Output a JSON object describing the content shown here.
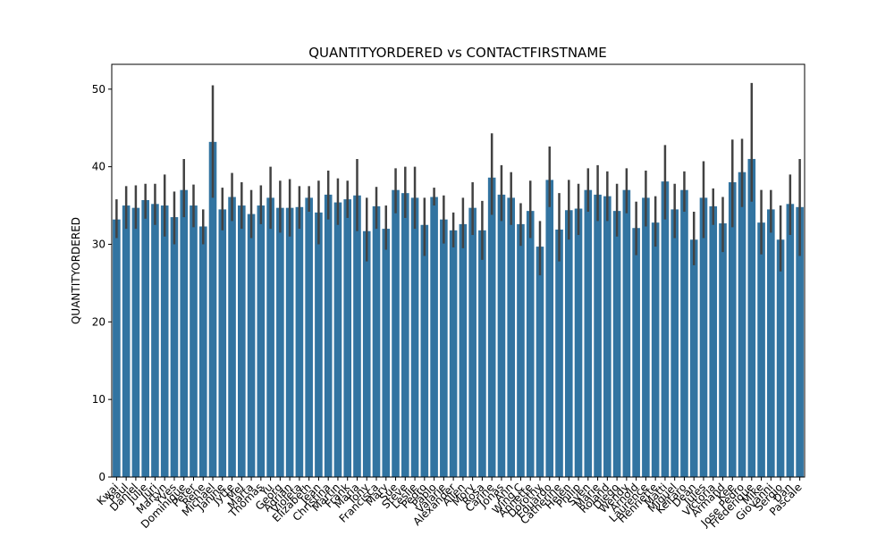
{
  "chart_data": {
    "type": "bar",
    "title": "QUANTITYORDERED vs CONTACTFIRSTNAME",
    "y_label": "QUANTITYORDERED",
    "categories": [
      "Kwai",
      "Paul",
      "Daniel",
      "Julie",
      "Juri",
      "Martyn",
      "Yves",
      "Dominique",
      "Peter",
      "Rene",
      "Michael",
      "Janine",
      "Jytte",
      "Mel",
      "Marta",
      "Thomas",
      "Yu",
      "Georg",
      "Adrian",
      "Violeta",
      "Elizabeth",
      "Jean",
      "Christina",
      "Martin",
      "Frank",
      "Maria",
      "Tony",
      "Francisca",
      "Mary",
      "Sue",
      "Steve",
      "Leslie",
      "Pedro",
      "Pablo",
      "Valarie",
      "Alexander",
      "Allen",
      "Mory",
      "Rosa",
      "Carine",
      "Jonas",
      "Ann",
      "Wing C",
      "Annette",
      "Dorothy",
      "Eduardo",
      "Catherine",
      "Helen",
      "Philip",
      "Sven",
      "Marie",
      "Roland",
      "Diego",
      "Wendy",
      "Arnold",
      "Laurence",
      "Henriette",
      "Matti",
      "Miguel",
      "Keitaro",
      "Dean",
      "Jules",
      "Victoria",
      "Armand",
      "Kee",
      "Jose Pedro",
      "Frederique",
      "Mike",
      "Giovanni",
      "Sergio",
      "Dan",
      "Pascale"
    ],
    "values": [
      33.2,
      35.0,
      34.7,
      35.7,
      35.2,
      35.0,
      33.5,
      37.0,
      35.0,
      32.3,
      43.2,
      34.5,
      36.1,
      35.0,
      33.9,
      35.0,
      36.0,
      34.7,
      34.7,
      34.8,
      36.0,
      34.1,
      36.4,
      35.4,
      35.8,
      36.3,
      31.7,
      34.9,
      32.0,
      37.0,
      36.6,
      36.0,
      32.5,
      36.1,
      33.2,
      31.8,
      32.6,
      34.7,
      31.8,
      38.6,
      36.4,
      36.0,
      32.6,
      34.3,
      29.7,
      38.3,
      31.9,
      34.4,
      34.6,
      37.0,
      36.4,
      36.2,
      34.3,
      37.0,
      32.1,
      36.0,
      32.8,
      38.1,
      34.5,
      37.0,
      30.6,
      36.0,
      34.9,
      32.7,
      38.0,
      39.3,
      41.0,
      32.8,
      34.5,
      30.6,
      35.2,
      34.8
    ],
    "ci_low": [
      30.8,
      32,
      32,
      33.3,
      32.5,
      31,
      30,
      33.5,
      32.2,
      30,
      36,
      31.8,
      33,
      32,
      30.8,
      32.6,
      32,
      31.5,
      31,
      32,
      34.2,
      30,
      33.2,
      32.5,
      33.4,
      31.7,
      27.8,
      32,
      29.3,
      34,
      33.4,
      32,
      28.5,
      35,
      30.1,
      29.6,
      29.5,
      31.2,
      28,
      33.8,
      33,
      32.5,
      29.8,
      30.8,
      26,
      34.8,
      27.8,
      30.6,
      31.2,
      34.2,
      33,
      33,
      31,
      34,
      28.6,
      32.3,
      29.7,
      33.2,
      30.8,
      34.2,
      27.3,
      30.8,
      32.5,
      29,
      32.2,
      34.8,
      35.5,
      28.7,
      31.5,
      26.5,
      31.2,
      28.5
    ],
    "ci_high": [
      35.8,
      37.5,
      37.6,
      37.8,
      37.8,
      39,
      36.8,
      41,
      37.7,
      34.5,
      50.5,
      37.3,
      39.2,
      38,
      37,
      37.6,
      40,
      38.2,
      38.4,
      37.5,
      37.5,
      38.2,
      39.5,
      38.5,
      38.2,
      41,
      36,
      37.4,
      35,
      39.8,
      40,
      40,
      36,
      37.3,
      36.3,
      34.1,
      36,
      38,
      35.6,
      44.3,
      40.2,
      39.3,
      35.3,
      38.2,
      33,
      42.6,
      36.6,
      38.3,
      37.8,
      39.8,
      40.2,
      39.4,
      37.8,
      39.8,
      35.5,
      39.5,
      36.2,
      42.8,
      37.8,
      39.4,
      34.2,
      40.7,
      37.2,
      36.1,
      43.5,
      43.6,
      50.8,
      37,
      37,
      35,
      39,
      41
    ],
    "color": "#3274a1",
    "error_color": "#424242",
    "ylim": [
      0,
      53.2
    ],
    "yticks": [
      0,
      10,
      20,
      30,
      40,
      50
    ]
  }
}
